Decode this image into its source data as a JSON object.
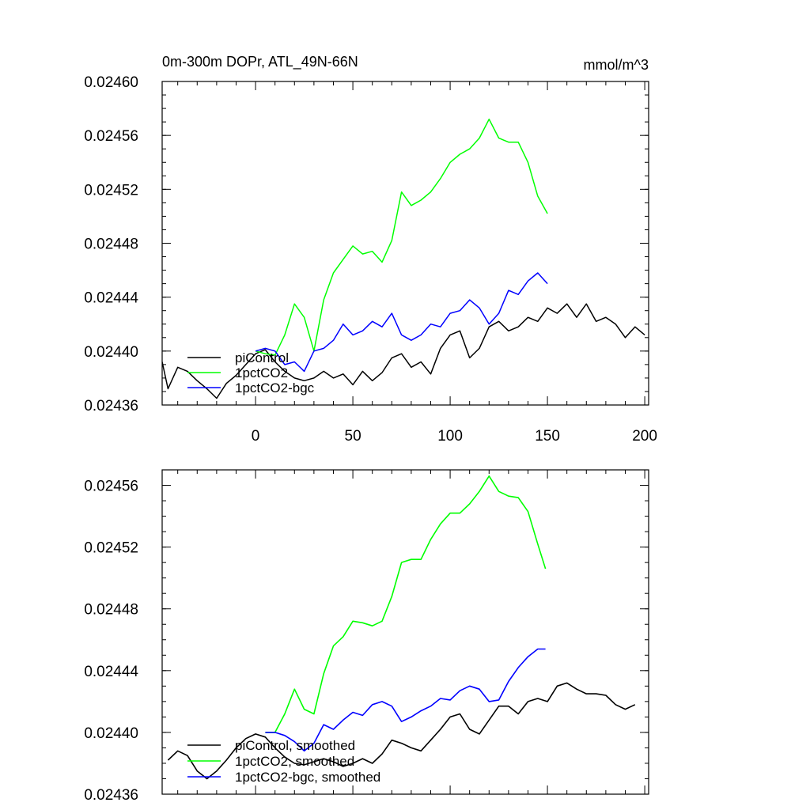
{
  "colors": {
    "piControl": "#000000",
    "1pctCO2": "#00ff00",
    "1pctCO2-bgc": "#0000ff",
    "frame": "#000000",
    "background": "#ffffff"
  },
  "chart_data": [
    {
      "type": "line",
      "title_left": "0m-300m DOPr, ATL_49N-66N",
      "title_right": "mmol/m^3",
      "xlim": [
        -48,
        202
      ],
      "ylim": [
        0.02436,
        0.0246
      ],
      "xticks": [
        0,
        50,
        100,
        150,
        200
      ],
      "xtick_labels": [
        "0",
        "50",
        "100",
        "150",
        "200"
      ],
      "yticks": [
        0.02436,
        0.0244,
        0.02444,
        0.02448,
        0.02452,
        0.02456,
        0.0246
      ],
      "ytick_labels": [
        "0.02436",
        "0.02440",
        "0.02444",
        "0.02448",
        "0.02452",
        "0.02456",
        "0.02460"
      ],
      "legend_position": "bottom-left",
      "series": [
        {
          "name": "piControl",
          "color_key": "piControl",
          "x": [
            -48,
            -45,
            -40,
            -35,
            -30,
            -25,
            -20,
            -15,
            -10,
            -5,
            0,
            5,
            10,
            15,
            20,
            25,
            30,
            35,
            40,
            45,
            50,
            55,
            60,
            65,
            70,
            75,
            80,
            85,
            90,
            95,
            100,
            105,
            110,
            115,
            120,
            125,
            130,
            135,
            140,
            145,
            150,
            155,
            160,
            165,
            170,
            175,
            180,
            185,
            190,
            195,
            200
          ],
          "y": [
            0.024392,
            0.024372,
            0.024388,
            0.024385,
            0.024378,
            0.024372,
            0.024365,
            0.024376,
            0.024382,
            0.02439,
            0.024398,
            0.024401,
            0.024392,
            0.024385,
            0.02438,
            0.024378,
            0.02438,
            0.024385,
            0.02438,
            0.024383,
            0.024375,
            0.024385,
            0.024378,
            0.024384,
            0.024395,
            0.024398,
            0.024388,
            0.024392,
            0.024383,
            0.024402,
            0.024412,
            0.024415,
            0.024395,
            0.024402,
            0.024418,
            0.024422,
            0.024415,
            0.024418,
            0.024425,
            0.024422,
            0.024432,
            0.024428,
            0.024435,
            0.024425,
            0.024435,
            0.024422,
            0.024425,
            0.02442,
            0.02441,
            0.024418,
            0.024412
          ]
        },
        {
          "name": "1pctCO2",
          "color_key": "1pctCO2",
          "x": [
            0,
            5,
            10,
            15,
            20,
            25,
            30,
            35,
            40,
            45,
            50,
            55,
            60,
            65,
            70,
            75,
            80,
            85,
            90,
            95,
            100,
            105,
            110,
            115,
            120,
            125,
            130,
            135,
            140,
            145,
            150
          ],
          "y": [
            0.0244,
            0.024398,
            0.024397,
            0.024412,
            0.024435,
            0.024425,
            0.0244,
            0.024438,
            0.024458,
            0.024468,
            0.024478,
            0.024472,
            0.024474,
            0.024466,
            0.024482,
            0.024518,
            0.024508,
            0.024512,
            0.024518,
            0.024528,
            0.02454,
            0.024546,
            0.02455,
            0.024558,
            0.024572,
            0.024558,
            0.024555,
            0.024555,
            0.02454,
            0.024515,
            0.024502
          ]
        },
        {
          "name": "1pctCO2-bgc",
          "color_key": "1pctCO2-bgc",
          "x": [
            0,
            5,
            10,
            15,
            20,
            25,
            30,
            35,
            40,
            45,
            50,
            55,
            60,
            65,
            70,
            75,
            80,
            85,
            90,
            95,
            100,
            105,
            110,
            115,
            120,
            125,
            130,
            135,
            140,
            145,
            150
          ],
          "y": [
            0.0244,
            0.024402,
            0.0244,
            0.02439,
            0.024392,
            0.024385,
            0.0244,
            0.024402,
            0.024408,
            0.02442,
            0.024412,
            0.024415,
            0.024422,
            0.024418,
            0.024428,
            0.024412,
            0.024408,
            0.024412,
            0.02442,
            0.024418,
            0.024428,
            0.02443,
            0.024438,
            0.024432,
            0.02442,
            0.024428,
            0.024445,
            0.024442,
            0.024452,
            0.024458,
            0.02445
          ]
        }
      ]
    },
    {
      "type": "line",
      "xlim": [
        -48,
        202
      ],
      "ylim": [
        0.02436,
        0.02457
      ],
      "xticks": [
        0,
        50,
        100,
        150,
        200
      ],
      "yticks": [
        0.02436,
        0.0244,
        0.02444,
        0.02448,
        0.02452,
        0.02456
      ],
      "ytick_labels": [
        "0.02436",
        "0.02440",
        "0.02444",
        "0.02448",
        "0.02452",
        "0.02456"
      ],
      "legend_position": "bottom-left",
      "series": [
        {
          "name": "piControl, smoothed",
          "color_key": "piControl",
          "x": [
            -45,
            -40,
            -35,
            -30,
            -25,
            -20,
            -15,
            -10,
            -5,
            0,
            5,
            10,
            15,
            20,
            25,
            30,
            35,
            40,
            45,
            50,
            55,
            60,
            65,
            70,
            75,
            80,
            85,
            90,
            95,
            100,
            105,
            110,
            115,
            120,
            125,
            130,
            135,
            140,
            145,
            150,
            155,
            160,
            165,
            170,
            175,
            180,
            185,
            190,
            195
          ],
          "y": [
            0.024382,
            0.024388,
            0.024385,
            0.024375,
            0.02437,
            0.024375,
            0.024382,
            0.02439,
            0.024396,
            0.024399,
            0.024397,
            0.02439,
            0.024384,
            0.02438,
            0.024379,
            0.024381,
            0.024383,
            0.024381,
            0.024378,
            0.02438,
            0.024383,
            0.02438,
            0.024386,
            0.024395,
            0.024393,
            0.02439,
            0.024388,
            0.024395,
            0.024402,
            0.02441,
            0.024412,
            0.024402,
            0.024399,
            0.024408,
            0.024417,
            0.024417,
            0.024412,
            0.02442,
            0.024422,
            0.02442,
            0.02443,
            0.024432,
            0.024428,
            0.024425,
            0.024425,
            0.024424,
            0.024418,
            0.024415,
            0.024418
          ]
        },
        {
          "name": "1pctCO2, smoothed",
          "color_key": "1pctCO2",
          "x": [
            5,
            10,
            15,
            20,
            25,
            30,
            35,
            40,
            45,
            50,
            55,
            60,
            65,
            70,
            75,
            80,
            85,
            90,
            95,
            100,
            105,
            110,
            115,
            120,
            125,
            130,
            135,
            140,
            145,
            149
          ],
          "y": [
            0.0244,
            0.0244,
            0.024412,
            0.024428,
            0.024415,
            0.024412,
            0.024438,
            0.024456,
            0.024462,
            0.024472,
            0.024471,
            0.024469,
            0.024472,
            0.024488,
            0.02451,
            0.024512,
            0.024512,
            0.024525,
            0.024535,
            0.024542,
            0.024542,
            0.024548,
            0.024556,
            0.024566,
            0.024556,
            0.024553,
            0.024552,
            0.024543,
            0.024522,
            0.024506
          ]
        },
        {
          "name": "1pctCO2-bgc, smoothed",
          "color_key": "1pctCO2-bgc",
          "x": [
            5,
            10,
            15,
            20,
            25,
            30,
            35,
            40,
            45,
            50,
            55,
            60,
            65,
            70,
            75,
            80,
            85,
            90,
            95,
            100,
            105,
            110,
            115,
            120,
            125,
            130,
            135,
            140,
            145,
            149
          ],
          "y": [
            0.0244,
            0.0244,
            0.024398,
            0.024394,
            0.024388,
            0.024393,
            0.024405,
            0.024402,
            0.024408,
            0.024413,
            0.024411,
            0.024418,
            0.02442,
            0.024417,
            0.024407,
            0.02441,
            0.024414,
            0.024417,
            0.024422,
            0.024421,
            0.024427,
            0.02443,
            0.024428,
            0.02442,
            0.024421,
            0.024433,
            0.024442,
            0.024449,
            0.024454,
            0.024454
          ]
        }
      ]
    }
  ]
}
